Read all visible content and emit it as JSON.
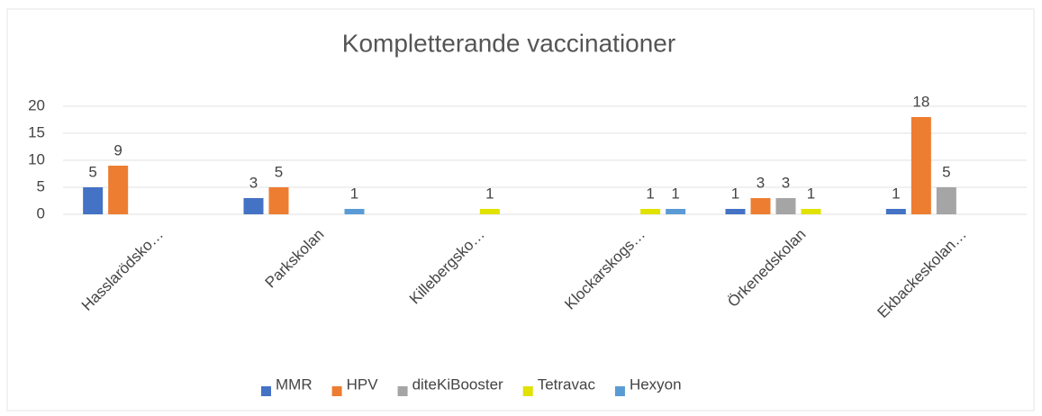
{
  "chart_data": {
    "type": "bar",
    "title": "Kompletterande vaccinationer",
    "categories": [
      "Hasslarödsko…",
      "Parkskolan",
      "Killebergsko…",
      "Klockarskogs…",
      "Örkenedskolan",
      "Ekbackeskolan…"
    ],
    "series": [
      {
        "name": "MMR",
        "color": "#4472c4",
        "values": [
          5,
          3,
          null,
          null,
          1,
          1
        ]
      },
      {
        "name": "HPV",
        "color": "#ed7d31",
        "values": [
          9,
          5,
          null,
          null,
          3,
          18
        ]
      },
      {
        "name": "diteKiBooster",
        "color": "#a5a5a5",
        "values": [
          null,
          null,
          null,
          null,
          3,
          5
        ]
      },
      {
        "name": "Tetravac",
        "color": "#e2e200",
        "values": [
          null,
          null,
          1,
          1,
          1,
          null
        ]
      },
      {
        "name": "Hexyon",
        "color": "#5b9bd5",
        "values": [
          null,
          1,
          null,
          1,
          null,
          null
        ]
      }
    ],
    "ylim": [
      0,
      20
    ],
    "yticks": [
      0,
      5,
      10,
      15,
      20
    ],
    "grid": true,
    "legend": "bottom"
  }
}
